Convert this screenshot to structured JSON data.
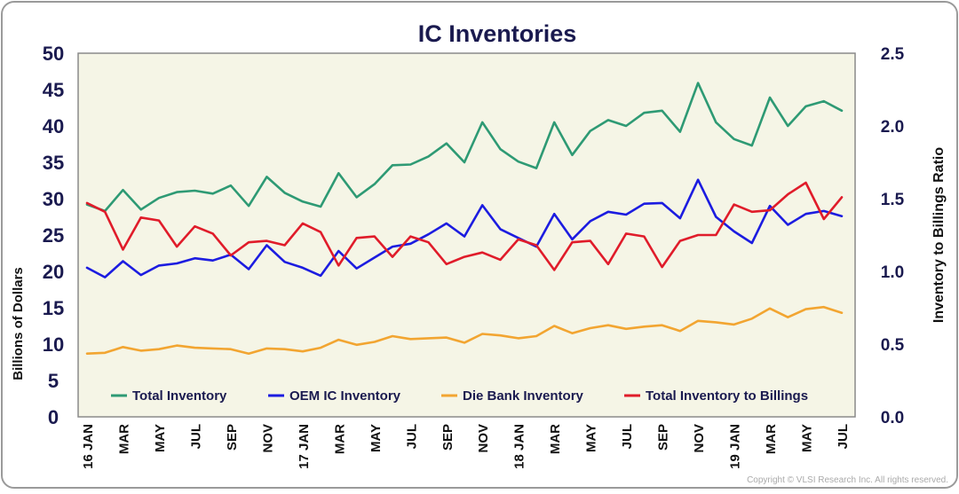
{
  "chart_data": {
    "type": "line",
    "title": "IC Inventories",
    "ylabel": "Billions of Dollars",
    "y2label": "Inventory  to Billings Ratio",
    "ylim": [
      0,
      50
    ],
    "y2lim": [
      0,
      2.5
    ],
    "yticks": [
      "0",
      "5",
      "10",
      "15",
      "20",
      "25",
      "30",
      "35",
      "40",
      "45",
      "50"
    ],
    "y2ticks": [
      "0.0",
      "0.5",
      "1.0",
      "1.5",
      "2.0",
      "2.5"
    ],
    "xticks": [
      "16 JAN",
      "MAR",
      "MAY",
      "JUL",
      "SEP",
      "NOV",
      "17 JAN",
      "MAR",
      "MAY",
      "JUL",
      "SEP",
      "NOV",
      "18 JAN",
      "MAR",
      "MAY",
      "JUL",
      "SEP",
      "NOV",
      "19 JAN",
      "MAR",
      "MAY",
      "JUL"
    ],
    "legend_position": "bottom",
    "grid": false,
    "series": [
      {
        "name": "Total  Inventory",
        "color": "#2e9a74",
        "axis": "left",
        "values": [
          29.2,
          28.3,
          31.2,
          28.5,
          30.1,
          30.9,
          31.1,
          30.7,
          31.8,
          29.0,
          33.0,
          30.8,
          29.6,
          28.9,
          33.5,
          30.2,
          32.0,
          34.6,
          34.7,
          35.8,
          37.6,
          35.0,
          40.5,
          36.8,
          35.1,
          34.2,
          40.5,
          36.0,
          39.3,
          40.8,
          40.0,
          41.8,
          42.1,
          39.2,
          45.9,
          40.5,
          38.2,
          37.3,
          43.9,
          40.0,
          42.7,
          43.4,
          42.1
        ]
      },
      {
        "name": "OEM IC  Inventory",
        "color": "#1c1ce0",
        "axis": "left",
        "values": [
          20.5,
          19.2,
          21.4,
          19.5,
          20.8,
          21.1,
          21.8,
          21.5,
          22.3,
          20.3,
          23.6,
          21.3,
          20.5,
          19.4,
          22.8,
          20.4,
          21.9,
          23.4,
          23.8,
          25.1,
          26.6,
          24.8,
          29.1,
          25.8,
          24.6,
          23.4,
          27.9,
          24.4,
          26.9,
          28.2,
          27.8,
          29.3,
          29.4,
          27.3,
          32.6,
          27.5,
          25.5,
          23.9,
          29.0,
          26.4,
          27.9,
          28.3,
          27.6
        ]
      },
      {
        "name": "Die Bank Inventory",
        "color": "#f2a531",
        "axis": "left",
        "values": [
          8.7,
          8.8,
          9.6,
          9.1,
          9.3,
          9.8,
          9.5,
          9.4,
          9.3,
          8.7,
          9.4,
          9.3,
          9.0,
          9.5,
          10.6,
          9.9,
          10.3,
          11.1,
          10.7,
          10.8,
          10.9,
          10.2,
          11.4,
          11.2,
          10.8,
          11.1,
          12.5,
          11.5,
          12.2,
          12.6,
          12.1,
          12.4,
          12.6,
          11.8,
          13.2,
          13.0,
          12.7,
          13.5,
          14.9,
          13.7,
          14.8,
          15.1,
          14.3
        ]
      },
      {
        "name": "Total Inventory to Billings",
        "color": "#e01c2a",
        "axis": "right",
        "values": [
          1.47,
          1.41,
          1.15,
          1.37,
          1.35,
          1.17,
          1.31,
          1.26,
          1.11,
          1.2,
          1.21,
          1.18,
          1.33,
          1.27,
          1.04,
          1.23,
          1.24,
          1.1,
          1.24,
          1.2,
          1.05,
          1.1,
          1.13,
          1.08,
          1.22,
          1.18,
          1.01,
          1.2,
          1.21,
          1.05,
          1.26,
          1.24,
          1.03,
          1.21,
          1.25,
          1.25,
          1.46,
          1.41,
          1.42,
          1.53,
          1.61,
          1.36,
          1.51
        ]
      }
    ],
    "legend": [
      "Total  Inventory",
      "OEM IC  Inventory",
      "Die Bank Inventory",
      "Total Inventory to Billings"
    ]
  },
  "copyright": "Copyright © VLSI Research Inc.  All rights reserved.",
  "colors": {
    "frame_border": "#9a9a9a",
    "plot_bg": "#f5f5e6",
    "plot_border": "#8a8a8a",
    "text": "#1a1a4f"
  }
}
